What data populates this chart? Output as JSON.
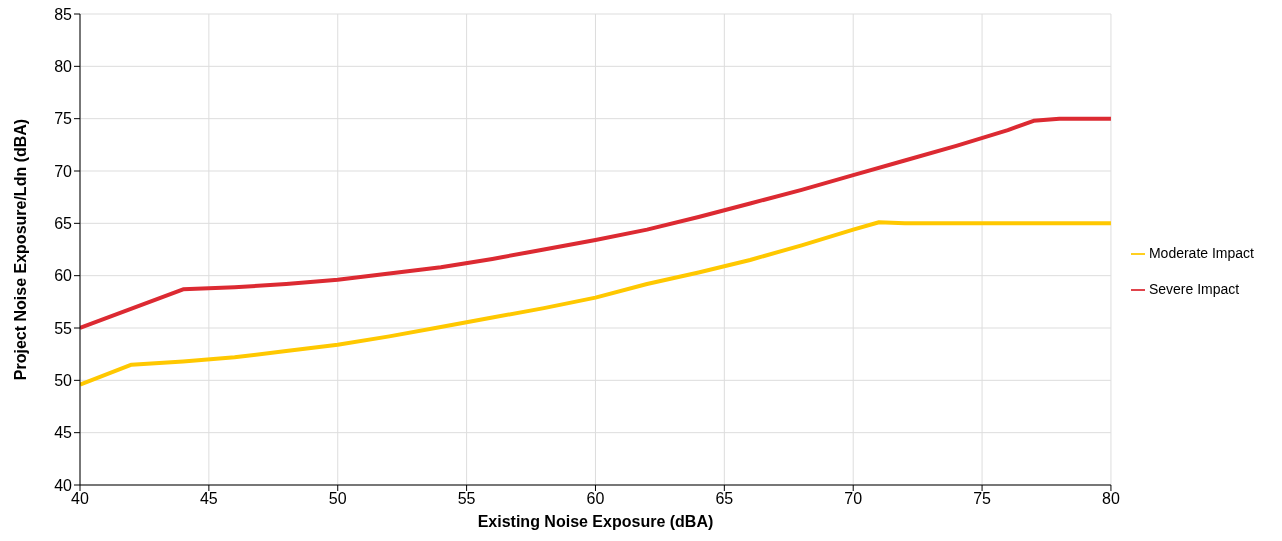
{
  "chart_data": {
    "type": "line",
    "xlabel": "Existing Noise Exposure (dBA)",
    "ylabel": "Project Noise Exposure/Ldn (dBA)",
    "series": [
      {
        "name": "Moderate Impact",
        "color": "#ffc800",
        "x": [
          40,
          42,
          44,
          46,
          48,
          50,
          52,
          54,
          56,
          58,
          60,
          62,
          64,
          66,
          68,
          70,
          71,
          72,
          74,
          76,
          78,
          80
        ],
        "values": [
          49.6,
          51.5,
          51.8,
          52.2,
          52.8,
          53.4,
          54.2,
          55.1,
          56.0,
          56.9,
          57.9,
          59.2,
          60.3,
          61.5,
          62.9,
          64.4,
          65.1,
          65,
          65,
          65,
          65,
          65
        ]
      },
      {
        "name": "Severe Impact",
        "color": "#dc2a32",
        "x": [
          40,
          44,
          46,
          48,
          50,
          52,
          54,
          56,
          58,
          60,
          62,
          64,
          66,
          68,
          70,
          72,
          74,
          76,
          77,
          78,
          80
        ],
        "values": [
          55,
          58.7,
          58.9,
          59.2,
          59.6,
          60.2,
          60.8,
          61.6,
          62.5,
          63.4,
          64.4,
          65.6,
          66.9,
          68.2,
          69.6,
          71,
          72.4,
          73.9,
          74.8,
          75,
          75
        ]
      }
    ],
    "xlim": [
      40,
      80
    ],
    "xticks": [
      40,
      45,
      50,
      55,
      60,
      65,
      70,
      75,
      80
    ],
    "ylim": [
      40,
      85
    ],
    "yticks": [
      40,
      45,
      50,
      55,
      60,
      65,
      70,
      75,
      80,
      85
    ],
    "grid": true,
    "legend": "right",
    "marker": "none",
    "line_style": "solid"
  }
}
